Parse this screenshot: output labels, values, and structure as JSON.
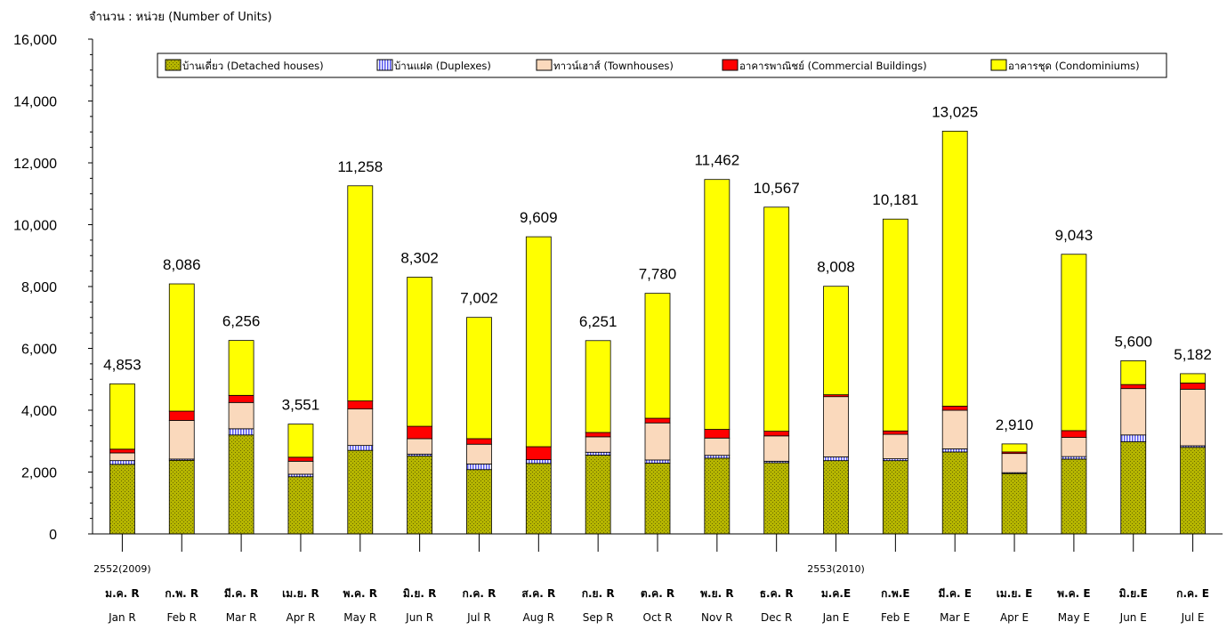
{
  "chart_data": {
    "type": "bar",
    "stacked": true,
    "ylabel": "จำนวน : หน่วย (Number of Units)",
    "ylim": [
      0,
      16000
    ],
    "yticks": [
      0,
      2000,
      4000,
      6000,
      8000,
      10000,
      12000,
      14000,
      16000
    ],
    "ytick_labels": [
      "0",
      "2,000",
      "4,000",
      "6,000",
      "8,000",
      "10,000",
      "12,000",
      "14,000",
      "16,000"
    ],
    "grid": false,
    "legend_position": "top",
    "categories_th": [
      "ม.ค. R",
      "ก.พ. R",
      "มี.ค. R",
      "เม.ย. R",
      "พ.ค. R",
      "มิ.ย. R",
      "ก.ค. R",
      "ส.ค. R",
      "ก.ย. R",
      "ต.ค. R",
      "พ.ย. R",
      "ธ.ค. R",
      "ม.ค.E",
      "ก.พ.E",
      "มี.ค. E",
      "เม.ย. E",
      "พ.ค. E",
      "มิ.ย.E",
      "ก.ค. E"
    ],
    "categories_en": [
      "Jan R",
      "Feb R",
      "Mar R",
      "Apr R",
      "May R",
      "Jun R",
      "Jul R",
      "Aug R",
      "Sep R",
      "Oct R",
      "Nov R",
      "Dec R",
      "Jan E",
      "Feb E",
      "Mar E",
      "Apr E",
      "May E",
      "Jun E",
      "Jul E"
    ],
    "year_labels": [
      {
        "index": 0,
        "label": "2552(2009)"
      },
      {
        "index": 12,
        "label": "2553(2010)"
      }
    ],
    "totals": [
      4853,
      8086,
      6256,
      3551,
      11258,
      8302,
      7002,
      9609,
      6251,
      7780,
      11462,
      10567,
      8008,
      10181,
      13025,
      2910,
      9043,
      5600,
      5182
    ],
    "total_labels": [
      "4,853",
      "8,086",
      "6,256",
      "3,551",
      "11,258",
      "8,302",
      "7,002",
      "9,609",
      "6,251",
      "7,780",
      "11,462",
      "10,567",
      "8,008",
      "10,181",
      "13,025",
      "2,910",
      "9,043",
      "5,600",
      "5,182"
    ],
    "series": [
      {
        "name": "บ้านเดี่ยว (Detached houses)",
        "color": "#b5b500",
        "values": [
          2250,
          2380,
          3200,
          1850,
          2700,
          2520,
          2080,
          2280,
          2550,
          2290,
          2450,
          2300,
          2370,
          2370,
          2650,
          1950,
          2420,
          2980,
          2800
        ]
      },
      {
        "name": "บ้านแฝด (Duplexes)",
        "color": "#7b7bf0",
        "values": [
          120,
          40,
          200,
          80,
          160,
          60,
          180,
          120,
          90,
          100,
          90,
          50,
          120,
          60,
          100,
          30,
          80,
          220,
          50
        ]
      },
      {
        "name": "ทาวน์เฮาส์ (Townhouses)",
        "color": "#fad9bc",
        "values": [
          250,
          1250,
          850,
          420,
          1180,
          500,
          640,
          0,
          500,
          1200,
          560,
          820,
          1950,
          790,
          1250,
          620,
          620,
          1500,
          1830
        ]
      },
      {
        "name": "อาคารพาณิชย์ (Commercial Buildings)",
        "color": "#ff0000",
        "values": [
          120,
          300,
          230,
          130,
          260,
          400,
          180,
          420,
          140,
          150,
          280,
          150,
          60,
          110,
          130,
          50,
          220,
          130,
          200
        ]
      },
      {
        "name": "อาคารชุด (Condominiums)",
        "color": "#ffff00",
        "values": [
          2113,
          4116,
          1776,
          1071,
          6958,
          4822,
          3922,
          6789,
          2971,
          4040,
          8082,
          7247,
          3508,
          6851,
          8895,
          260,
          5703,
          770,
          302
        ]
      }
    ]
  }
}
